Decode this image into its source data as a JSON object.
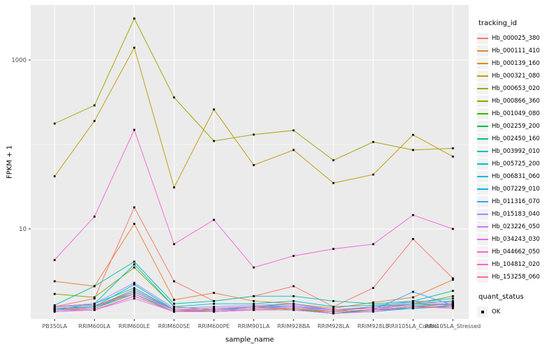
{
  "legend": {
    "tracking_title": "tracking_id",
    "quant_title": "quant_status",
    "quant_items": [
      {
        "label": "OK",
        "shape": "filled-square",
        "color": "#000000"
      }
    ]
  },
  "chart_data": {
    "type": "line",
    "title": "",
    "xlabel": "sample_name",
    "ylabel": "FPKM + 1",
    "y_scale": "log10",
    "y_tick_values": [
      10,
      1000
    ],
    "y_tick_labels": [
      "10",
      "1000"
    ],
    "y_minor_gridlines": [
      1,
      100
    ],
    "ylim": [
      0.86,
      4500
    ],
    "legend_position": "right",
    "panel_background": "#EBEBEB",
    "gridline_color": "#FFFFFF",
    "point_color": "#000000",
    "point_shape": "square",
    "categories": [
      "PB350LA",
      "RRIM600LA",
      "RRIM600LE",
      "RRIM600SE",
      "RRIM600PE",
      "RRIM901LA",
      "RRIM928BA",
      "RRIM928LA",
      "RRIM928LE",
      "RRII105LA_Control",
      "RRII105LA_Stressed"
    ],
    "series": [
      {
        "name": "Hb_000025_380",
        "color": "#F8766D",
        "values": [
          1.2,
          1.5,
          18,
          2.4,
          1.4,
          1.6,
          2.1,
          1.2,
          2.0,
          7.6,
          2.6
        ]
      },
      {
        "name": "Hb_000111_410",
        "color": "#EA8331",
        "values": [
          2.4,
          2.1,
          11.5,
          1.45,
          1.75,
          1.4,
          1.3,
          1.15,
          1.35,
          1.55,
          2.5
        ]
      },
      {
        "name": "Hb_000139_160",
        "color": "#D89000",
        "values": [
          1.1,
          1.2,
          1.8,
          1.1,
          1.1,
          1.2,
          1.1,
          1.05,
          1.1,
          1.2,
          1.3
        ]
      },
      {
        "name": "Hb_000321_080",
        "color": "#C09B00",
        "values": [
          42,
          190,
          1400,
          31,
          260,
          57,
          86,
          35,
          44,
          130,
          72
        ]
      },
      {
        "name": "Hb_000653_020",
        "color": "#A3A500",
        "values": [
          177,
          290,
          3100,
          360,
          110,
          131,
          147,
          65,
          107,
          86,
          90
        ]
      },
      {
        "name": "Hb_000866_360",
        "color": "#7CAE00",
        "values": [
          1.7,
          1.55,
          3.5,
          1.2,
          1.1,
          1.15,
          1.15,
          1.05,
          1.2,
          1.3,
          1.6
        ]
      },
      {
        "name": "Hb_001049_080",
        "color": "#39B600",
        "values": [
          1.15,
          1.2,
          1.9,
          1.1,
          1.05,
          1.1,
          1.15,
          1.0,
          1.1,
          1.2,
          1.3
        ]
      },
      {
        "name": "Hb_002259_200",
        "color": "#00BB4E",
        "values": [
          1.1,
          1.15,
          1.7,
          1.05,
          1.1,
          1.1,
          1.1,
          1.0,
          1.1,
          1.15,
          1.25
        ]
      },
      {
        "name": "Hb_002450_160",
        "color": "#00C087",
        "values": [
          1.2,
          1.3,
          2.0,
          1.1,
          1.15,
          1.2,
          1.3,
          1.1,
          1.2,
          1.3,
          1.4
        ]
      },
      {
        "name": "Hb_003992_010",
        "color": "#00C1AB",
        "values": [
          1.25,
          2.1,
          4.1,
          1.3,
          1.4,
          1.6,
          1.6,
          1.4,
          1.3,
          1.4,
          1.85
        ]
      },
      {
        "name": "Hb_005725_200",
        "color": "#00BFC4",
        "values": [
          1.1,
          1.3,
          3.8,
          1.2,
          1.3,
          1.3,
          1.4,
          1.2,
          1.25,
          1.35,
          1.5
        ]
      },
      {
        "name": "Hb_006831_060",
        "color": "#00BAE0",
        "values": [
          1.15,
          1.2,
          2.2,
          1.1,
          1.1,
          1.2,
          1.2,
          1.1,
          1.15,
          1.25,
          1.3
        ]
      },
      {
        "name": "Hb_007229_010",
        "color": "#00B0F6",
        "values": [
          1.05,
          1.1,
          1.6,
          1.05,
          1.05,
          1.1,
          1.1,
          1.0,
          1.05,
          1.15,
          1.2
        ]
      },
      {
        "name": "Hb_011316_070",
        "color": "#35A2FF",
        "values": [
          1.1,
          1.15,
          1.8,
          1.1,
          1.1,
          1.15,
          1.2,
          1.05,
          1.1,
          1.8,
          1.25
        ]
      },
      {
        "name": "Hb_015183_040",
        "color": "#9590FF",
        "values": [
          1.2,
          1.3,
          2.3,
          1.15,
          1.2,
          1.25,
          1.3,
          1.1,
          1.2,
          1.4,
          1.35
        ]
      },
      {
        "name": "Hb_023226_050",
        "color": "#C77CFF",
        "values": [
          1.1,
          1.15,
          1.9,
          1.1,
          1.1,
          1.15,
          1.2,
          1.05,
          1.1,
          1.3,
          1.25
        ]
      },
      {
        "name": "Hb_034243_030",
        "color": "#E76BF3",
        "values": [
          1.05,
          1.1,
          1.5,
          1.05,
          1.05,
          1.1,
          1.1,
          1.0,
          1.05,
          1.2,
          1.15
        ]
      },
      {
        "name": "Hb_044662_050",
        "color": "#FA62DB",
        "values": [
          4.3,
          14,
          149,
          6.6,
          12.8,
          3.5,
          4.8,
          5.8,
          6.6,
          14.6,
          10
        ]
      },
      {
        "name": "Hb_104812_020",
        "color": "#FF61CC",
        "values": [
          1.2,
          1.25,
          1.7,
          1.1,
          1.15,
          1.2,
          1.25,
          1.1,
          1.15,
          1.3,
          1.3
        ]
      },
      {
        "name": "Hb_153258_060",
        "color": "#FF67A4",
        "values": [
          1.1,
          1.1,
          1.6,
          1.05,
          1.1,
          1.1,
          1.15,
          1.05,
          1.1,
          1.2,
          1.2
        ]
      }
    ]
  }
}
